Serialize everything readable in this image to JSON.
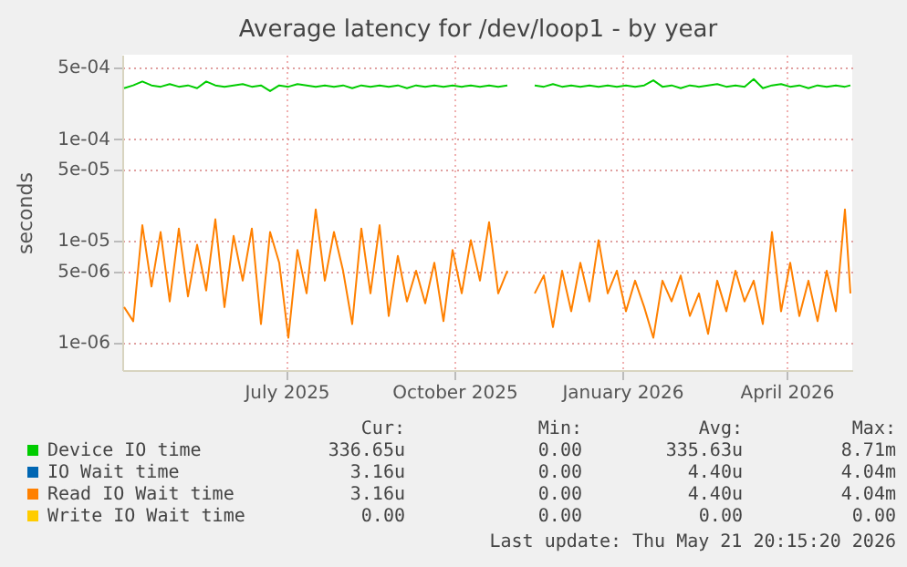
{
  "chart_data": {
    "type": "line",
    "title": "Average latency for /dev/loop1 - by year",
    "ylabel": "seconds",
    "log": "y",
    "x": [
      "2025-04-18",
      "2025-04-23",
      "2025-04-28",
      "2025-05-03",
      "2025-05-08",
      "2025-05-13",
      "2025-05-18",
      "2025-05-23",
      "2025-05-28",
      "2025-06-02",
      "2025-06-07",
      "2025-06-12",
      "2025-06-17",
      "2025-06-22",
      "2025-06-27",
      "2025-07-02",
      "2025-07-07",
      "2025-07-12",
      "2025-07-17",
      "2025-07-22",
      "2025-07-27",
      "2025-08-01",
      "2025-08-06",
      "2025-08-11",
      "2025-08-16",
      "2025-08-21",
      "2025-08-26",
      "2025-08-31",
      "2025-09-05",
      "2025-09-10",
      "2025-09-15",
      "2025-09-20",
      "2025-09-25",
      "2025-09-30",
      "2025-10-05",
      "2025-10-10",
      "2025-10-15",
      "2025-10-20",
      "2025-10-25",
      "2025-10-30",
      "2025-11-04",
      "2025-11-09",
      "2025-11-14",
      "2025-11-19",
      "2025-11-24",
      "2025-11-29",
      "2025-12-04",
      "2025-12-09",
      "2025-12-14",
      "2025-12-19",
      "2025-12-24",
      "2025-12-29",
      "2026-01-03",
      "2026-01-08",
      "2026-01-13",
      "2026-01-18",
      "2026-01-23",
      "2026-01-28",
      "2026-02-02",
      "2026-02-07",
      "2026-02-12",
      "2026-02-17",
      "2026-02-22",
      "2026-02-27",
      "2026-03-04",
      "2026-03-09",
      "2026-03-14",
      "2026-03-19",
      "2026-03-24",
      "2026-03-29",
      "2026-04-03",
      "2026-04-08",
      "2026-04-13",
      "2026-04-18",
      "2026-04-23",
      "2026-04-28",
      "2026-05-03",
      "2026-05-08",
      "2026-05-13",
      "2026-05-18",
      "2026-05-21"
    ],
    "series": [
      {
        "name": "Device IO time",
        "color": "#00cc00",
        "values": [
          0.00031,
          0.00033,
          0.00036,
          0.00033,
          0.00032,
          0.00034,
          0.00032,
          0.00033,
          0.00031,
          0.00036,
          0.00033,
          0.00032,
          0.00033,
          0.00034,
          0.00032,
          0.00033,
          0.00029,
          0.00033,
          0.00032,
          0.00034,
          0.00033,
          0.00032,
          0.00033,
          0.00032,
          0.00033,
          0.00031,
          0.00033,
          0.00032,
          0.00033,
          0.00032,
          0.00033,
          0.00031,
          0.00033,
          0.00032,
          0.00033,
          0.00032,
          0.00033,
          0.00032,
          0.00033,
          0.00032,
          0.00033,
          0.00032,
          0.00033,
          null,
          null,
          0.00033,
          0.00032,
          0.00034,
          0.00032,
          0.00033,
          0.00032,
          0.00033,
          0.00032,
          0.00033,
          0.00032,
          0.00033,
          0.00032,
          0.00033,
          0.00037,
          0.00032,
          0.00033,
          0.00031,
          0.00033,
          0.00032,
          0.00033,
          0.00034,
          0.00032,
          0.00033,
          0.00032,
          0.00038,
          0.00031,
          0.00033,
          0.00034,
          0.00032,
          0.00033,
          0.00031,
          0.00033,
          0.00032,
          0.00033,
          0.00032,
          0.00033
        ]
      },
      {
        "name": "IO Wait time",
        "color": "#0066b3",
        "values": [
          null,
          null,
          null,
          null,
          null,
          null,
          null,
          null,
          null,
          null,
          null,
          null,
          null,
          null,
          null,
          null,
          null,
          null,
          null,
          null,
          null,
          null,
          null,
          null,
          null,
          null,
          null,
          null,
          null,
          null,
          null,
          null,
          null,
          null,
          null,
          null,
          null,
          null,
          null,
          null,
          null,
          null,
          null,
          null,
          null,
          null,
          null,
          null,
          null,
          null,
          null,
          null,
          null,
          null,
          null,
          null,
          null,
          null,
          null,
          null,
          null,
          null,
          null,
          null,
          null,
          null,
          null,
          null,
          null,
          null,
          null,
          null,
          null,
          null,
          null,
          null,
          null,
          null,
          null,
          null,
          null
        ]
      },
      {
        "name": "Read IO Wait time",
        "color": "#ff8000",
        "values": [
          2.2e-06,
          1.6e-06,
          1.4e-05,
          3.5e-06,
          1.2e-05,
          2.5e-06,
          1.3e-05,
          2.8e-06,
          9e-06,
          3.2e-06,
          1.6e-05,
          2.2e-06,
          1.1e-05,
          4e-06,
          1.3e-05,
          1.5e-06,
          1.2e-05,
          6e-06,
          1.1e-06,
          8e-06,
          3e-06,
          2e-05,
          4e-06,
          1.2e-05,
          5e-06,
          1.5e-06,
          1.3e-05,
          3e-06,
          1.4e-05,
          1.8e-06,
          7e-06,
          2.5e-06,
          5e-06,
          2.4e-06,
          6e-06,
          1.6e-06,
          8e-06,
          3e-06,
          1e-05,
          4e-06,
          1.5e-05,
          3e-06,
          5e-06,
          null,
          null,
          3e-06,
          4.5e-06,
          1.4e-06,
          5e-06,
          2e-06,
          6e-06,
          2.5e-06,
          1e-05,
          3e-06,
          5e-06,
          2e-06,
          4e-06,
          2.2e-06,
          1.1e-06,
          4e-06,
          2.5e-06,
          4.5e-06,
          1.8e-06,
          3e-06,
          1.2e-06,
          4e-06,
          2e-06,
          5e-06,
          2.5e-06,
          4e-06,
          1.5e-06,
          1.2e-05,
          2e-06,
          6e-06,
          1.8e-06,
          4e-06,
          1.6e-06,
          5e-06,
          2e-06,
          2e-05,
          3e-06
        ]
      },
      {
        "name": "Write IO Wait time",
        "color": "#ffcc00",
        "values": [
          null,
          null,
          null,
          null,
          null,
          null,
          null,
          null,
          null,
          null,
          null,
          null,
          null,
          null,
          null,
          null,
          null,
          null,
          null,
          null,
          null,
          null,
          null,
          null,
          null,
          null,
          null,
          null,
          null,
          null,
          null,
          null,
          null,
          null,
          null,
          null,
          null,
          null,
          null,
          null,
          null,
          null,
          null,
          null,
          null,
          null,
          null,
          null,
          null,
          null,
          null,
          null,
          null,
          null,
          null,
          null,
          null,
          null,
          null,
          null,
          null,
          null,
          null,
          null,
          null,
          null,
          null,
          null,
          null,
          null,
          null,
          null,
          null,
          null,
          null,
          null,
          null,
          null,
          null,
          null,
          null
        ]
      }
    ],
    "xlim": [
      "2025-04-17",
      "2026-05-22"
    ],
    "xticks": [
      {
        "value": "2025-07-16",
        "label": "July 2025"
      },
      {
        "value": "2025-10-16",
        "label": "October 2025"
      },
      {
        "value": "2026-01-16",
        "label": "January 2026"
      },
      {
        "value": "2026-04-16",
        "label": "April 2026"
      }
    ],
    "ylim": [
      5.3e-07,
      0.00066
    ],
    "yticks": [
      {
        "value": 1e-06,
        "label": "1e-06"
      },
      {
        "value": 5e-06,
        "label": "5e-06"
      },
      {
        "value": 1e-05,
        "label": "1e-05"
      },
      {
        "value": 5e-05,
        "label": "5e-05"
      },
      {
        "value": 0.0001,
        "label": "1e-04"
      },
      {
        "value": 0.0005,
        "label": "5e-04"
      }
    ],
    "grid": true,
    "legend": "bottom",
    "annotations": [
      "Cur:",
      "Min:",
      "Avg:",
      "Max:",
      "336.65u",
      "0.00",
      "335.63u",
      "8.71m",
      "3.16u",
      "0.00",
      "4.40u",
      "4.04m",
      "3.16u",
      "0.00",
      "4.40u",
      "4.04m",
      "0.00",
      "0.00",
      "0.00",
      "0.00",
      "Last update: Thu May 21 20:15:20 2026"
    ]
  }
}
